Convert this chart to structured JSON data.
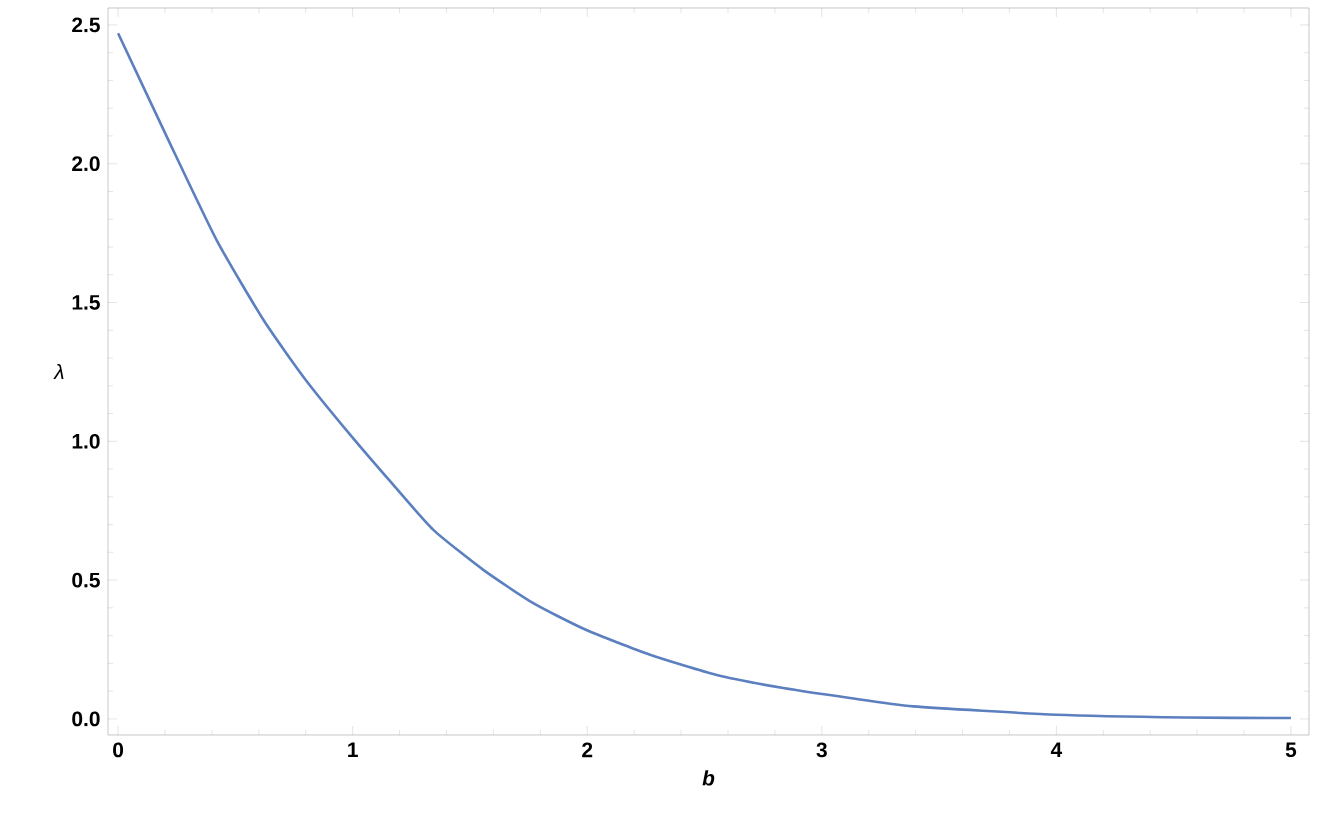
{
  "chart_data": {
    "type": "line",
    "xlabel": "*b*",
    "ylabel": "λ",
    "x": [
      0,
      0.214,
      0.42,
      0.62,
      0.8,
      0.99,
      1.167,
      1.344,
      1.557,
      1.77,
      1.994,
      2.268,
      2.552,
      2.836,
      3.12,
      3.39,
      4.0,
      4.55,
      5.0
    ],
    "series": [
      {
        "color": "#5b7fbf",
        "values": [
          2.47,
          2.086,
          1.725,
          1.437,
          1.221,
          1.023,
          0.849,
          0.681,
          0.537,
          0.417,
          0.321,
          0.231,
          0.158,
          0.111,
          0.075,
          0.045,
          0.015,
          0.005,
          0.003
        ]
      }
    ],
    "xlim": [
      -0.043,
      5.077
    ],
    "ylim": [
      -0.058,
      2.561
    ],
    "xticks": [
      0,
      1,
      2,
      3,
      4,
      5
    ],
    "yticks": [
      {
        "value": 0,
        "label": "0.0"
      },
      {
        "value": 0.5,
        "label": "0.5"
      },
      {
        "value": 1,
        "label": "1.0"
      },
      {
        "value": 1.5,
        "label": "1.5"
      },
      {
        "value": 2,
        "label": "2.0"
      },
      {
        "value": 2.5,
        "label": "2.5"
      }
    ]
  }
}
